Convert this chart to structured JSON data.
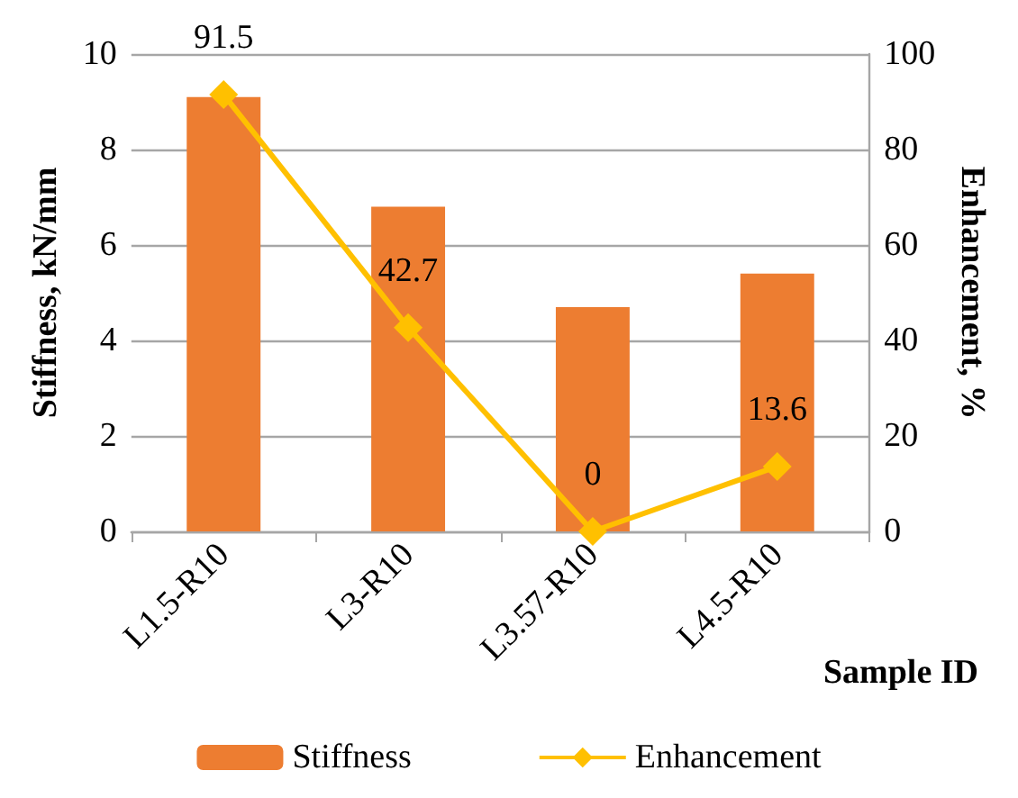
{
  "chart_data": {
    "type": "bar",
    "categories": [
      "L1.5-R10",
      "L3-R10",
      "L3.57-R10",
      "L4.5-R10"
    ],
    "xlabel": "Sample ID",
    "ylabel": "Stiffness, kN/mm",
    "y2label": "Enhancement, %",
    "series": [
      {
        "name": "Stiffness",
        "color": "#ed7d31",
        "values": [
          9.1,
          6.8,
          4.7,
          5.4
        ]
      },
      {
        "name": "Enhancement",
        "type": "line",
        "axis": "y2",
        "color": "#ffc000",
        "values": [
          91.5,
          42.7,
          0,
          13.6
        ],
        "value_labels": [
          "91.5",
          "42.7",
          "0",
          "13.6"
        ]
      }
    ],
    "ylim": [
      0,
      10
    ],
    "yticks": [
      0,
      2,
      4,
      6,
      8,
      10
    ],
    "y2lim": [
      0,
      100
    ],
    "y2ticks": [
      0,
      20,
      40,
      60,
      80,
      100
    ],
    "grid": "y",
    "legend": "bottom",
    "marker": "diamond",
    "line_style": "solid"
  }
}
